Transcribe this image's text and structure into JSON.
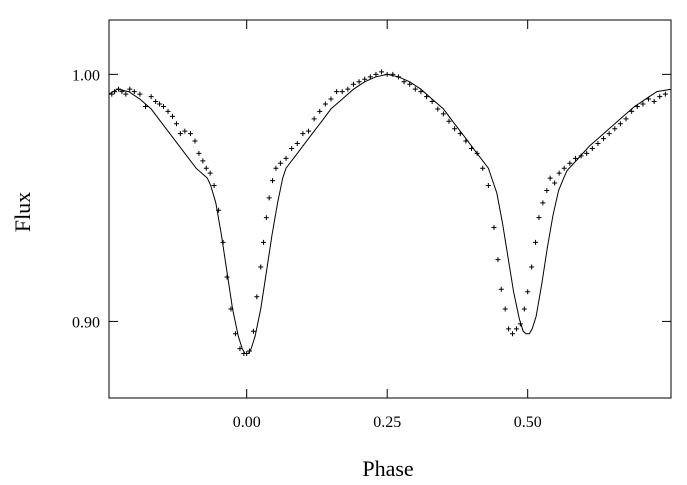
{
  "chart_data": {
    "type": "scatter",
    "title": "",
    "xlabel": "Phase",
    "ylabel": "Flux",
    "xlim": [
      -0.245,
      0.755
    ],
    "ylim": [
      0.869,
      1.022
    ],
    "x_ticks": [
      {
        "value": 0.0,
        "label": "0.00"
      },
      {
        "value": 0.25,
        "label": "0.25"
      },
      {
        "value": 0.5,
        "label": "0.50"
      }
    ],
    "y_ticks": [
      {
        "value": 0.9,
        "label": "0.90"
      },
      {
        "value": 1.0,
        "label": "1.00"
      }
    ],
    "grid": false,
    "series": [
      {
        "kind": "points",
        "marker": "+",
        "x": [
          -0.24,
          -0.235,
          -0.228,
          -0.222,
          -0.215,
          -0.208,
          -0.2,
          -0.19,
          -0.18,
          -0.17,
          -0.162,
          -0.155,
          -0.148,
          -0.14,
          -0.132,
          -0.125,
          -0.118,
          -0.11,
          -0.1,
          -0.092,
          -0.085,
          -0.078,
          -0.072,
          -0.065,
          -0.058,
          -0.05,
          -0.042,
          -0.035,
          -0.028,
          -0.02,
          -0.012,
          -0.005,
          0.0,
          0.005,
          0.012,
          0.018,
          0.025,
          0.03,
          0.035,
          0.04,
          0.046,
          0.052,
          0.06,
          0.07,
          0.08,
          0.09,
          0.1,
          0.11,
          0.12,
          0.13,
          0.14,
          0.15,
          0.16,
          0.17,
          0.18,
          0.19,
          0.2,
          0.21,
          0.22,
          0.23,
          0.24,
          0.25,
          0.26,
          0.27,
          0.28,
          0.29,
          0.3,
          0.31,
          0.32,
          0.33,
          0.34,
          0.35,
          0.36,
          0.37,
          0.38,
          0.39,
          0.4,
          0.41,
          0.42,
          0.43,
          0.44,
          0.447,
          0.453,
          0.46,
          0.466,
          0.473,
          0.48,
          0.487,
          0.494,
          0.5,
          0.507,
          0.514,
          0.52,
          0.527,
          0.534,
          0.54,
          0.548,
          0.556,
          0.565,
          0.575,
          0.585,
          0.595,
          0.605,
          0.615,
          0.625,
          0.635,
          0.645,
          0.655,
          0.665,
          0.675,
          0.685,
          0.695,
          0.705,
          0.715,
          0.725,
          0.735,
          0.745
        ],
        "y": [
          0.992,
          0.993,
          0.994,
          0.993,
          0.992,
          0.994,
          0.993,
          0.992,
          0.987,
          0.991,
          0.989,
          0.988,
          0.987,
          0.985,
          0.983,
          0.98,
          0.976,
          0.977,
          0.976,
          0.973,
          0.968,
          0.965,
          0.962,
          0.96,
          0.955,
          0.945,
          0.932,
          0.918,
          0.905,
          0.895,
          0.889,
          0.887,
          0.887,
          0.888,
          0.896,
          0.91,
          0.922,
          0.932,
          0.942,
          0.95,
          0.957,
          0.962,
          0.964,
          0.966,
          0.97,
          0.972,
          0.976,
          0.977,
          0.982,
          0.985,
          0.988,
          0.99,
          0.993,
          0.993,
          0.994,
          0.996,
          0.997,
          0.998,
          0.999,
          1.0,
          1.001,
          1.0,
          1.0,
          0.999,
          0.997,
          0.996,
          0.994,
          0.993,
          0.991,
          0.989,
          0.986,
          0.984,
          0.981,
          0.978,
          0.976,
          0.973,
          0.97,
          0.968,
          0.962,
          0.955,
          0.938,
          0.925,
          0.913,
          0.905,
          0.897,
          0.895,
          0.897,
          0.899,
          0.905,
          0.912,
          0.922,
          0.932,
          0.942,
          0.948,
          0.953,
          0.958,
          0.956,
          0.96,
          0.962,
          0.964,
          0.966,
          0.967,
          0.968,
          0.97,
          0.972,
          0.974,
          0.976,
          0.978,
          0.98,
          0.982,
          0.985,
          0.987,
          0.988,
          0.99,
          0.989,
          0.991,
          0.992
        ]
      },
      {
        "kind": "line",
        "x": [
          -0.245,
          -0.23,
          -0.21,
          -0.19,
          -0.17,
          -0.15,
          -0.13,
          -0.11,
          -0.09,
          -0.07,
          -0.064,
          -0.055,
          -0.045,
          -0.035,
          -0.025,
          -0.015,
          -0.008,
          -0.003,
          0.0,
          0.003,
          0.008,
          0.015,
          0.025,
          0.035,
          0.045,
          0.055,
          0.064,
          0.07,
          0.09,
          0.11,
          0.13,
          0.15,
          0.17,
          0.19,
          0.21,
          0.23,
          0.25,
          0.27,
          0.29,
          0.31,
          0.33,
          0.35,
          0.37,
          0.39,
          0.41,
          0.43,
          0.436,
          0.445,
          0.455,
          0.465,
          0.475,
          0.485,
          0.492,
          0.497,
          0.5,
          0.503,
          0.508,
          0.515,
          0.525,
          0.535,
          0.545,
          0.555,
          0.564,
          0.57,
          0.59,
          0.61,
          0.63,
          0.65,
          0.67,
          0.69,
          0.71,
          0.73,
          0.755
        ],
        "y": [
          0.992,
          0.994,
          0.993,
          0.99,
          0.986,
          0.98,
          0.974,
          0.968,
          0.962,
          0.958,
          0.955,
          0.948,
          0.935,
          0.92,
          0.905,
          0.894,
          0.889,
          0.887,
          0.887,
          0.887,
          0.889,
          0.894,
          0.905,
          0.92,
          0.935,
          0.948,
          0.958,
          0.962,
          0.968,
          0.974,
          0.98,
          0.986,
          0.99,
          0.994,
          0.997,
          0.999,
          1.0,
          0.999,
          0.997,
          0.994,
          0.99,
          0.986,
          0.98,
          0.974,
          0.968,
          0.962,
          0.958,
          0.952,
          0.94,
          0.926,
          0.912,
          0.901,
          0.896,
          0.895,
          0.895,
          0.895,
          0.897,
          0.902,
          0.915,
          0.93,
          0.943,
          0.953,
          0.958,
          0.961,
          0.966,
          0.971,
          0.975,
          0.979,
          0.983,
          0.987,
          0.99,
          0.993,
          0.994
        ]
      }
    ]
  }
}
